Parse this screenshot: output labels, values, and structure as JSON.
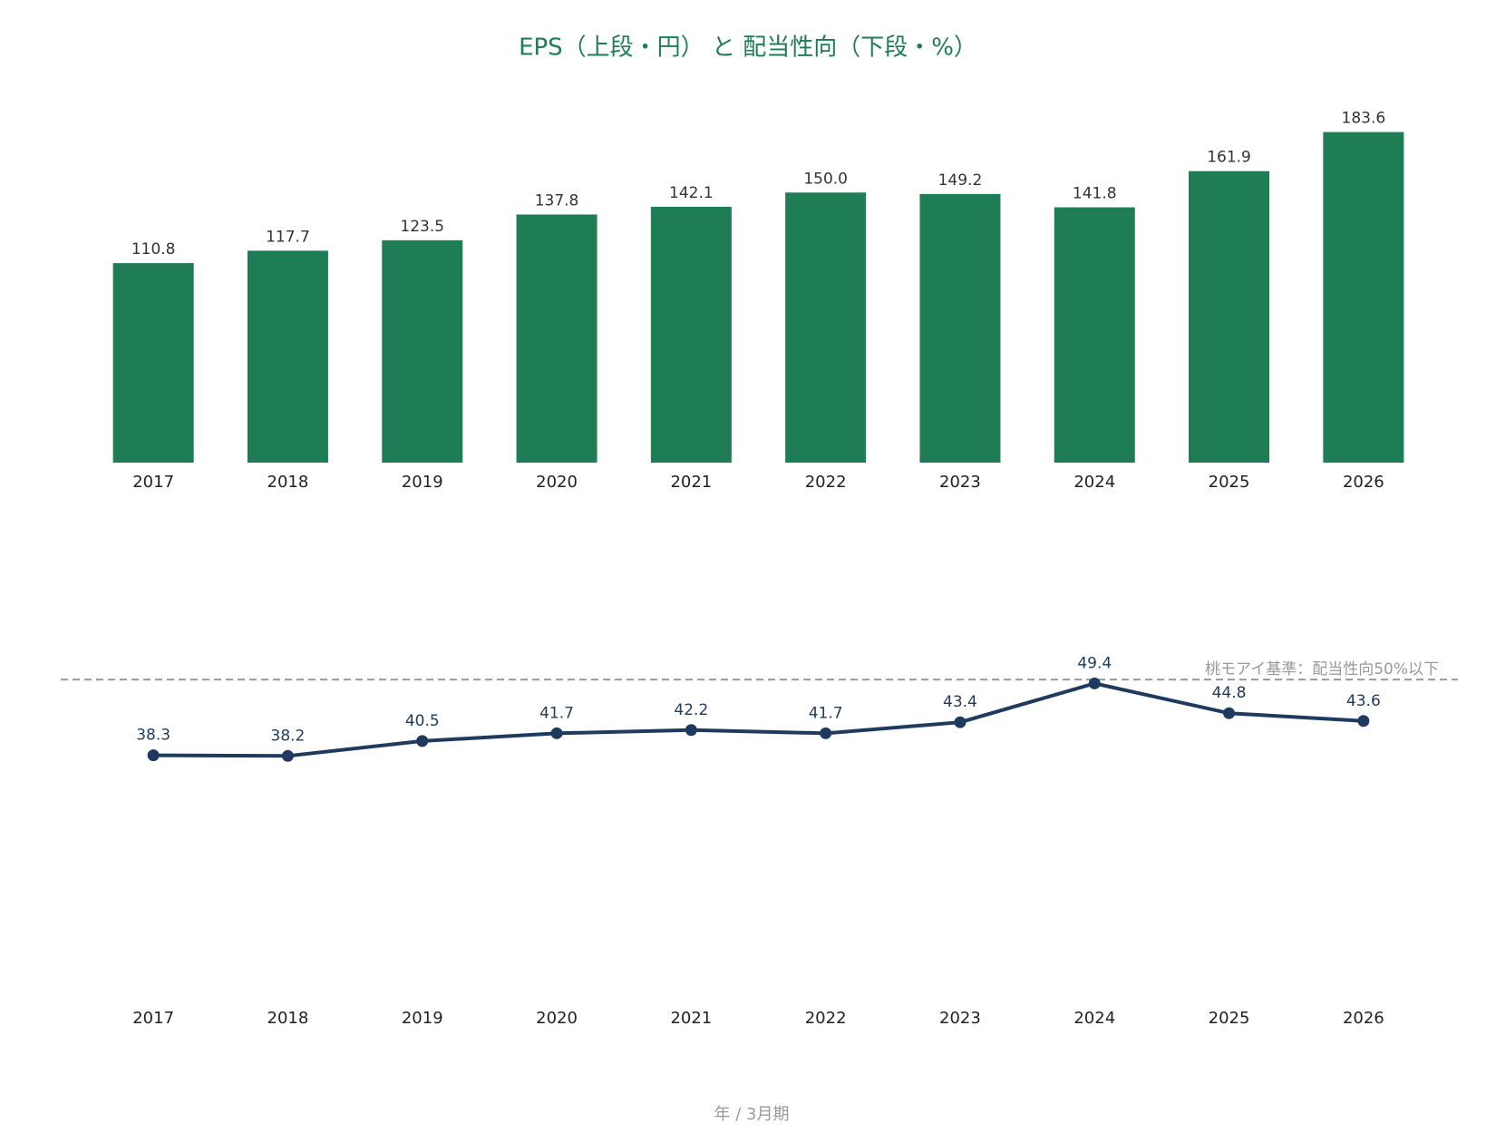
{
  "chart_data": [
    {
      "type": "bar",
      "title": "EPS（上段・円） と 配当性向（下段・%）",
      "categories": [
        "2017",
        "2018",
        "2019",
        "2020",
        "2021",
        "2022",
        "2023",
        "2024",
        "2025",
        "2026"
      ],
      "values": [
        110.8,
        117.7,
        123.5,
        137.8,
        142.1,
        150.0,
        149.2,
        141.8,
        161.9,
        183.6
      ],
      "value_labels": [
        "110.8",
        "117.7",
        "123.5",
        "137.8",
        "142.1",
        "150.0",
        "149.2",
        "141.8",
        "161.9",
        "183.6"
      ],
      "color": "#1e7d55",
      "ylim": [
        0,
        200
      ]
    },
    {
      "type": "line",
      "xlabel": "年 / 3月期",
      "categories": [
        "2017",
        "2018",
        "2019",
        "2020",
        "2021",
        "2022",
        "2023",
        "2024",
        "2025",
        "2026"
      ],
      "values": [
        38.3,
        38.2,
        40.5,
        41.7,
        42.2,
        41.7,
        43.4,
        49.4,
        44.8,
        43.6
      ],
      "color": "#1f3a5f",
      "ylim": [
        0,
        65
      ],
      "hline": {
        "value": 50,
        "label": "桃モアイ基準：配当性向50%以下"
      }
    }
  ]
}
